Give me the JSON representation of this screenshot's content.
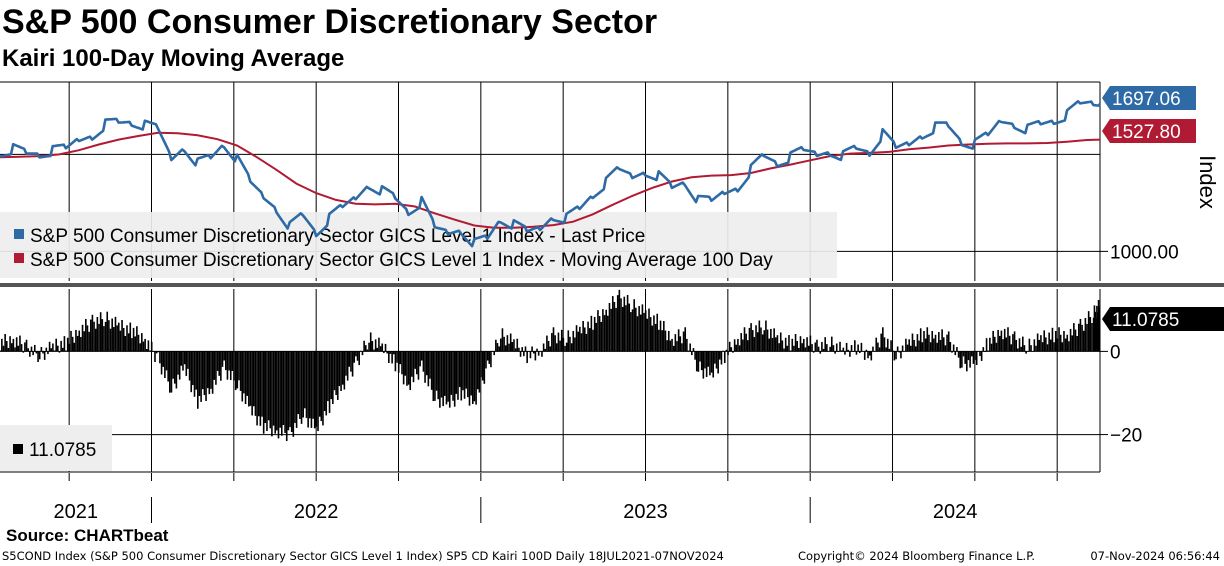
{
  "title": "S&P 500 Consumer Discretionary Sector",
  "subtitle": "Kairi 100-Day Moving Average",
  "source": "Source: CHARTbeat",
  "footer": {
    "left": "S5COND Index (S&P 500 Consumer Discretionary Sector GICS Level 1 Index) SP5 CD Kairi 100D  Daily 18JUL2021-07NOV2024",
    "middle": "Copyright© 2024 Bloomberg Finance L.P.",
    "right": "07-Nov-2024 06:56:44"
  },
  "colors": {
    "price": "#2e6aa5",
    "ma": "#b11a33",
    "kairi": "#000000",
    "price_tag": "#2e6aa5",
    "ma_tag": "#b11a33",
    "kairi_tag": "#000000",
    "legend_bg": "#eeeeee",
    "separator": "#555555"
  },
  "chart_data": [
    {
      "type": "line",
      "title": "S&P 500 Consumer Discretionary Sector",
      "ylabel": "Index",
      "ylim": [
        860,
        1800
      ],
      "yticks": [
        1000
      ],
      "ytick_labels": [
        "1000.00"
      ],
      "x_years": [
        "2021",
        "2022",
        "2023",
        "2024"
      ],
      "x_boundaries": [
        2022,
        2023,
        2024
      ],
      "xlim": [
        2021.54,
        2024.88
      ],
      "current_labels": {
        "last_price": "1697.06",
        "moving_average": "1527.80"
      },
      "legend": [
        "S&P 500 Consumer Discretionary Sector GICS Level 1 Index - Last Price",
        "S&P 500 Consumer Discretionary Sector GICS Level 1 Index - Moving Average 100 Day"
      ],
      "series": [
        {
          "name": "Last Price",
          "x": [
            2021.54,
            2021.58,
            2021.62,
            2021.66,
            2021.7,
            2021.74,
            2021.78,
            2021.82,
            2021.86,
            2021.9,
            2021.94,
            2021.98,
            2022.02,
            2022.06,
            2022.1,
            2022.14,
            2022.18,
            2022.22,
            2022.26,
            2022.3,
            2022.34,
            2022.38,
            2022.42,
            2022.46,
            2022.5,
            2022.54,
            2022.58,
            2022.62,
            2022.66,
            2022.7,
            2022.74,
            2022.78,
            2022.82,
            2022.86,
            2022.9,
            2022.94,
            2022.98,
            2023.02,
            2023.06,
            2023.1,
            2023.14,
            2023.18,
            2023.22,
            2023.26,
            2023.3,
            2023.34,
            2023.38,
            2023.42,
            2023.46,
            2023.5,
            2023.54,
            2023.58,
            2023.62,
            2023.66,
            2023.7,
            2023.74,
            2023.78,
            2023.82,
            2023.86,
            2023.9,
            2023.94,
            2023.98,
            2024.02,
            2024.06,
            2024.1,
            2024.14,
            2024.18,
            2024.22,
            2024.26,
            2024.3,
            2024.34,
            2024.38,
            2024.42,
            2024.46,
            2024.5,
            2024.54,
            2024.58,
            2024.62,
            2024.66,
            2024.7,
            2024.74,
            2024.78,
            2024.82,
            2024.86,
            2024.88
          ],
          "values": [
            1475,
            1488,
            1462,
            1462,
            1470,
            1478,
            1530,
            1555,
            1605,
            1608,
            1612,
            1590,
            1570,
            1440,
            1500,
            1420,
            1440,
            1510,
            1430,
            1320,
            1260,
            1210,
            1120,
            1170,
            1090,
            1150,
            1200,
            1255,
            1325,
            1290,
            1250,
            1190,
            1230,
            1105,
            1090,
            1110,
            1040,
            1060,
            1155,
            1120,
            1085,
            1110,
            1175,
            1160,
            1200,
            1270,
            1320,
            1380,
            1355,
            1385,
            1360,
            1300,
            1330,
            1235,
            1230,
            1280,
            1310,
            1390,
            1450,
            1420,
            1440,
            1470,
            1460,
            1480,
            1455,
            1485,
            1470,
            1550,
            1480,
            1510,
            1560,
            1590,
            1590,
            1520,
            1500,
            1540,
            1620,
            1610,
            1580,
            1600,
            1620,
            1640,
            1690,
            1700,
            1697
          ]
        },
        {
          "name": "Moving Average 100 Day",
          "x": [
            2021.54,
            2021.6,
            2021.66,
            2021.72,
            2021.78,
            2021.84,
            2021.9,
            2021.96,
            2022.02,
            2022.08,
            2022.14,
            2022.2,
            2022.26,
            2022.32,
            2022.38,
            2022.44,
            2022.5,
            2022.56,
            2022.62,
            2022.68,
            2022.74,
            2022.8,
            2022.86,
            2022.92,
            2022.98,
            2023.04,
            2023.1,
            2023.16,
            2023.22,
            2023.28,
            2023.34,
            2023.4,
            2023.46,
            2023.52,
            2023.58,
            2023.64,
            2023.7,
            2023.76,
            2023.82,
            2023.88,
            2023.94,
            2024.0,
            2024.06,
            2024.12,
            2024.18,
            2024.24,
            2024.3,
            2024.36,
            2024.42,
            2024.48,
            2024.54,
            2024.6,
            2024.66,
            2024.72,
            2024.78,
            2024.84,
            2024.88
          ],
          "values": [
            1445,
            1447,
            1450,
            1458,
            1478,
            1505,
            1528,
            1545,
            1560,
            1558,
            1548,
            1530,
            1500,
            1445,
            1385,
            1320,
            1275,
            1243,
            1225,
            1222,
            1225,
            1212,
            1180,
            1150,
            1122,
            1112,
            1112,
            1116,
            1124,
            1140,
            1175,
            1220,
            1262,
            1300,
            1330,
            1350,
            1358,
            1360,
            1370,
            1392,
            1410,
            1430,
            1450,
            1462,
            1465,
            1470,
            1482,
            1490,
            1500,
            1505,
            1508,
            1510,
            1510,
            1512,
            1518,
            1526,
            1528
          ]
        }
      ]
    },
    {
      "type": "bar",
      "title": "Kairi 100-Day Moving Average",
      "ylim": [
        -29,
        15
      ],
      "yticks": [
        0,
        -20
      ],
      "ytick_labels": [
        "0",
        "−20"
      ],
      "current_label": "11.0785",
      "legend": [
        "11.0785"
      ],
      "series": [
        {
          "name": "Kairi 100D",
          "x": [
            2021.54,
            2021.58,
            2021.62,
            2021.66,
            2021.7,
            2021.74,
            2021.78,
            2021.82,
            2021.86,
            2021.9,
            2021.94,
            2021.98,
            2022.02,
            2022.06,
            2022.1,
            2022.14,
            2022.18,
            2022.22,
            2022.26,
            2022.3,
            2022.34,
            2022.38,
            2022.42,
            2022.46,
            2022.5,
            2022.54,
            2022.58,
            2022.62,
            2022.66,
            2022.7,
            2022.74,
            2022.78,
            2022.82,
            2022.86,
            2022.9,
            2022.94,
            2022.98,
            2023.02,
            2023.06,
            2023.1,
            2023.14,
            2023.18,
            2023.22,
            2023.26,
            2023.3,
            2023.34,
            2023.38,
            2023.42,
            2023.46,
            2023.5,
            2023.54,
            2023.58,
            2023.62,
            2023.66,
            2023.7,
            2023.74,
            2023.78,
            2023.82,
            2023.86,
            2023.9,
            2023.94,
            2023.98,
            2024.02,
            2024.06,
            2024.1,
            2024.14,
            2024.18,
            2024.22,
            2024.26,
            2024.3,
            2024.34,
            2024.38,
            2024.42,
            2024.46,
            2024.5,
            2024.54,
            2024.58,
            2024.62,
            2024.66,
            2024.7,
            2024.74,
            2024.78,
            2024.82,
            2024.86,
            2024.88
          ],
          "values": [
            2,
            3,
            1,
            -1,
            1,
            2,
            5,
            7,
            8,
            6,
            5,
            3,
            -2,
            -9,
            -4,
            -12,
            -9,
            -4,
            -8,
            -14,
            -18,
            -19,
            -20,
            -15,
            -19,
            -13,
            -8,
            -3,
            3,
            1,
            -3,
            -8,
            -4,
            -11,
            -13,
            -10,
            -12,
            -4,
            4,
            2,
            -1,
            0,
            4,
            3,
            5,
            7,
            10,
            13,
            11,
            9,
            7,
            3,
            4,
            -4,
            -6,
            -1,
            3,
            5,
            6,
            3,
            2,
            3,
            1,
            2,
            0,
            1,
            -1,
            4,
            -1,
            2,
            4,
            4,
            3,
            -3,
            -3,
            2,
            5,
            3,
            1,
            3,
            4,
            4,
            6,
            9,
            11.0785
          ]
        }
      ]
    }
  ]
}
